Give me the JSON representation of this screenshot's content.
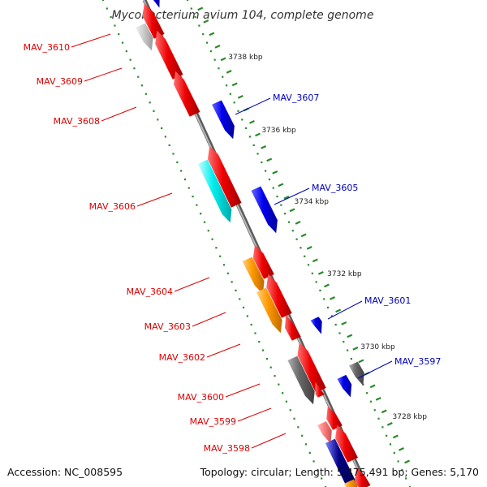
{
  "title": "Mycobacterium avium 104, complete genome",
  "footer": {
    "accession": "Accession: NC_008595",
    "topology": "Topology: circular; Length: 5,475,491 bp; Genes: 5,170"
  },
  "colors": {
    "reverse_label": "#dd0000",
    "forward_label": "#0000bb",
    "backbone": "#8a8a8a",
    "tick": "#2a8a2a",
    "red": "#ee0000",
    "blue": "#0000ee",
    "cyan": "#00eeee",
    "orange": "#ff9900",
    "gray": "#666666",
    "lightgray": "#cccccc",
    "pink": "#ff8080",
    "navy": "#000088"
  },
  "gene_labels": [
    {
      "name": "MAV_3610",
      "strand": "reverse"
    },
    {
      "name": "MAV_3609",
      "strand": "reverse"
    },
    {
      "name": "MAV_3608",
      "strand": "reverse"
    },
    {
      "name": "MAV_3607",
      "strand": "forward"
    },
    {
      "name": "MAV_3606",
      "strand": "reverse"
    },
    {
      "name": "MAV_3605",
      "strand": "forward"
    },
    {
      "name": "MAV_3604",
      "strand": "reverse"
    },
    {
      "name": "MAV_3603",
      "strand": "reverse"
    },
    {
      "name": "MAV_3602",
      "strand": "reverse"
    },
    {
      "name": "MAV_3601",
      "strand": "forward"
    },
    {
      "name": "MAV_3600",
      "strand": "reverse"
    },
    {
      "name": "MAV_3597",
      "strand": "forward"
    },
    {
      "name": "MAV_3599",
      "strand": "reverse"
    },
    {
      "name": "MAV_3598",
      "strand": "reverse"
    }
  ],
  "position_labels": [
    "3738 kbp",
    "3736 kbp",
    "3734 kbp",
    "3732 kbp",
    "3730 kbp",
    "3728 kbp"
  ]
}
